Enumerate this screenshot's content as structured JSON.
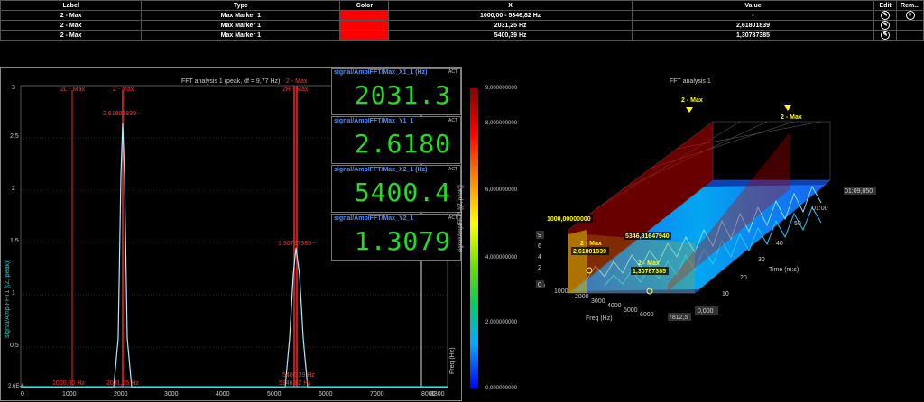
{
  "table": {
    "headers": [
      "Label",
      "Type",
      "Color",
      "X",
      "Value",
      "Edit",
      "Rem..."
    ],
    "rows": [
      {
        "label": "2 - Max",
        "type": "Max Marker 1",
        "color": "#ff0000",
        "x": "1000,00 - 5346,82 Hz",
        "value": "-"
      },
      {
        "label": "2 - Max",
        "type": "Max Marker 1",
        "color": "#ff0000",
        "x": "2031,25 Hz",
        "value": "2,61801839"
      },
      {
        "label": "2 - Max",
        "type": "Max Marker 1",
        "color": "#ff0000",
        "x": "5400,39 Hz",
        "value": "1,30787385"
      }
    ]
  },
  "fft": {
    "title": "FFT analysis 1 (peak, df = 9,77 Hz)",
    "ylabel": "signal/AmpIFFT1 [(Z, peak)]",
    "xlabel": "Freq (Hz)",
    "yticks": [
      "3",
      "2,5",
      "2",
      "1,5",
      "1",
      "0,5",
      "2,6E-6"
    ],
    "xticks": [
      "0",
      "1000",
      "2000",
      "3000",
      "4000",
      "5000",
      "6000",
      "7000",
      "8000"
    ],
    "xmax_label": "8300",
    "markers": {
      "m2L": "2L - Max",
      "m2": "2 - Max",
      "m2b": "2 - Max",
      "m2R": "2R - Max",
      "v1": "2,61801839 -",
      "v2": "1,30787385 -",
      "f1": "1000,00 Hz",
      "f2": "2031,25 Hz",
      "f3": "5400,39 Hz",
      "f4": "5346,82 Hz"
    }
  },
  "value_displays": [
    {
      "title": "signal/AmpIFFT/Max_X1_1 (Hz)",
      "act": "ACT",
      "value": "2031.3"
    },
    {
      "title": "signal/AmpIFFT/Max_Y1_1",
      "act": "ACT",
      "value": "2.6180"
    },
    {
      "title": "signal/AmpIFFT/Max_X2_1 (Hz)",
      "act": "ACT",
      "value": "5400.4"
    },
    {
      "title": "signal/AmpIFFT/Max_Y2_1",
      "act": "ACT",
      "value": "1.3079"
    }
  ],
  "colorbar": {
    "labels": [
      "9,000000000",
      "8,000000000",
      "6,000000000",
      "4,000000000",
      "2,000000000",
      "0,000000000"
    ],
    "axis_title": "signal/AmpIFFT1 [(Z, peak)]"
  },
  "plot3d": {
    "title": "FFT analysis 1",
    "xlabel": "Freq (Hz)",
    "ylabel": "Time (m:s)",
    "xticks": [
      "1000",
      "2000",
      "3000",
      "4000",
      "5000",
      "6000"
    ],
    "xmax": "7812,5",
    "xmin": "0",
    "yticks": [
      "10",
      "20",
      "30",
      "40",
      "50",
      "01:00"
    ],
    "ymax": "01:09,050",
    "ymin": "0,000",
    "zticks": [
      "9",
      "6",
      "4",
      "2",
      "0"
    ],
    "labels": {
      "a": "2 - Max",
      "b": "2 - Max",
      "c": "1000,00000000",
      "d": "2 - Max",
      "e": "2,61801839",
      "f": "5346,81647940",
      "g": "2 - Max",
      "h": "1,30787385"
    }
  }
}
